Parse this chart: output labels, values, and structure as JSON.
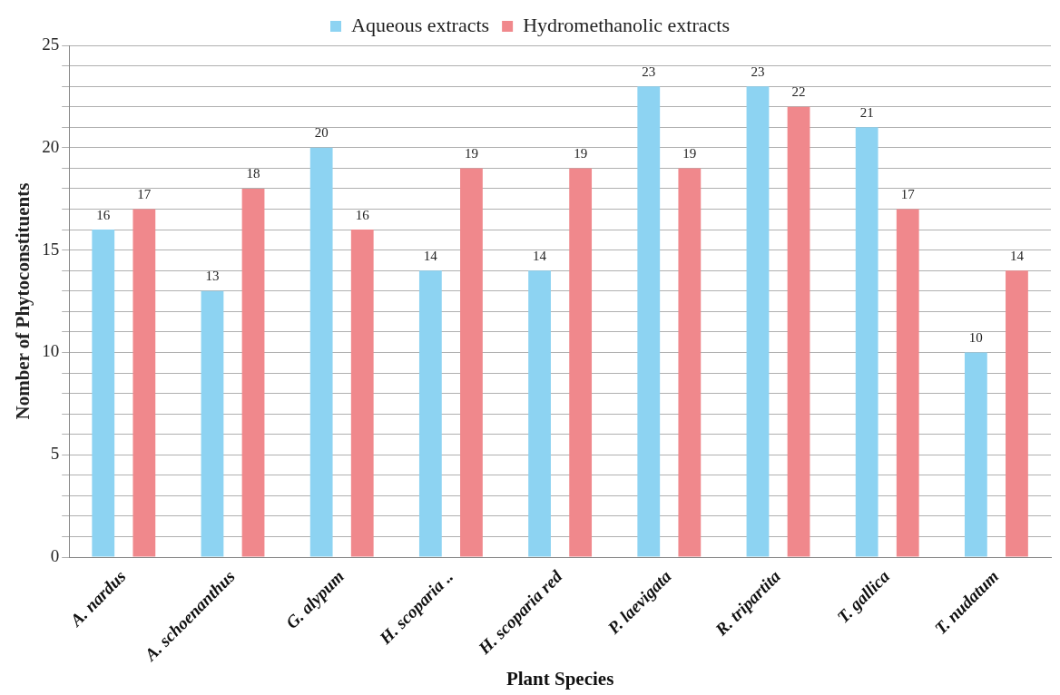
{
  "chart_data": {
    "type": "bar",
    "xlabel": "Plant Species",
    "ylabel": "Nomber of Phytoconstituents",
    "categories": [
      "A. nardus",
      "A. schoenanthus",
      "G. alypum",
      "H. scoparia ..",
      "H. scoparia red",
      "P. laevigata",
      "R. tripartita",
      "T. gallica",
      "T. nudatum"
    ],
    "series": [
      {
        "name": "Aqueous extracts",
        "color": "#8dd3f2",
        "values": [
          16,
          13,
          20,
          14,
          14,
          23,
          23,
          21,
          10
        ]
      },
      {
        "name": "Hydromethanolic extracts",
        "color": "#f0888c",
        "values": [
          17,
          18,
          16,
          19,
          19,
          19,
          22,
          17,
          14
        ]
      }
    ],
    "ylim": [
      0,
      25
    ],
    "yticks": [
      0,
      {
        "value": 1,
        "label": null
      },
      {
        "value": 2,
        "label": null
      },
      {
        "value": 3,
        "label": null
      },
      {
        "value": 4,
        "label": null
      },
      5,
      {
        "value": 6,
        "label": null
      },
      {
        "value": 7,
        "label": null
      },
      {
        "value": 8,
        "label": null
      },
      {
        "value": 9,
        "label": null
      },
      10,
      {
        "value": 11,
        "label": null
      },
      {
        "value": 12,
        "label": null
      },
      {
        "value": 13,
        "label": null
      },
      {
        "value": 14,
        "label": null
      },
      15,
      {
        "value": 16,
        "label": null
      },
      {
        "value": 17,
        "label": null
      },
      {
        "value": 18,
        "label": null
      },
      {
        "value": 19,
        "label": null
      },
      20,
      {
        "value": 21,
        "label": null
      },
      {
        "value": 22,
        "label": null
      },
      {
        "value": 23,
        "label": null
      },
      {
        "value": 24,
        "label": null
      },
      25
    ],
    "grid": "y",
    "legend": "top",
    "data_labels": true
  }
}
